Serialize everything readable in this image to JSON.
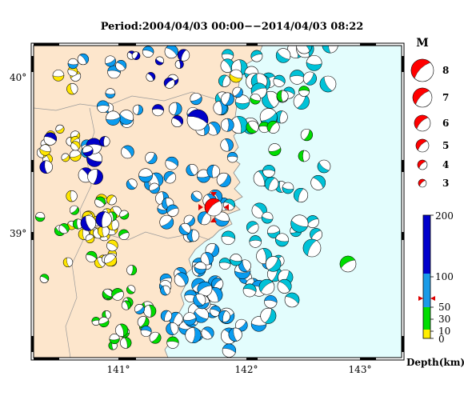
{
  "title": "Period:2004/04/03 00:00−−2014/04/03 08:22",
  "map": {
    "lat_labels": [
      "40°",
      "39°"
    ],
    "lon_labels": [
      "141°",
      "142°",
      "143°"
    ],
    "land_color": "#fde6cc",
    "sea_color": "#e3fdfd"
  },
  "magnitude_legend": {
    "header": "M",
    "entries": [
      "8",
      "7",
      "6",
      "5",
      "4",
      "3"
    ],
    "color": "#ff0000"
  },
  "depth_scale": {
    "ticks": [
      "200",
      "100",
      "50",
      "30",
      "10",
      "0"
    ],
    "label": "Depth(km)",
    "colors": [
      "#0000cc",
      "#1a9be8",
      "#00dd00",
      "#ffee00"
    ]
  },
  "mechanisms": {
    "colors": {
      "shallow": "#ffe600",
      "upper": "#00dd00",
      "mid": "#0a9cf0",
      "mid_offshore": "#00c2d8",
      "deep": "#0000c8",
      "main": "#ff0000"
    }
  }
}
